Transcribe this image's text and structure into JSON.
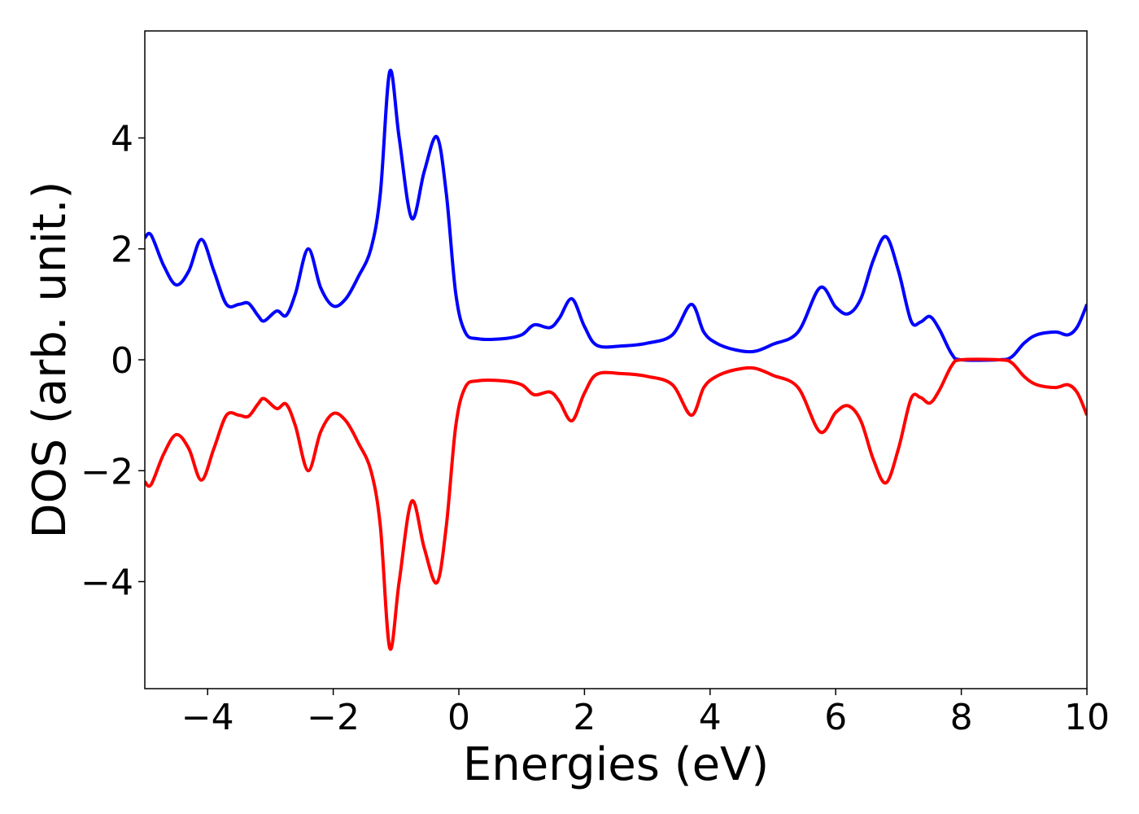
{
  "chart_data": {
    "type": "line",
    "xlabel": "Energies (eV)",
    "ylabel": "DOS (arb. unit.)",
    "x": [
      -5,
      -4.9,
      -4.7,
      -4.5,
      -4.3,
      -4.1,
      -3.9,
      -3.7,
      -3.5,
      -3.35,
      -3.2,
      -3.1,
      -2.9,
      -2.75,
      -2.6,
      -2.4,
      -2.2,
      -2.0,
      -1.8,
      -1.6,
      -1.4,
      -1.25,
      -1.1,
      -0.95,
      -0.75,
      -0.55,
      -0.35,
      -0.2,
      -0.05,
      0.1,
      0.3,
      0.7,
      1.0,
      1.2,
      1.45,
      1.6,
      1.8,
      2.0,
      2.2,
      2.6,
      3.0,
      3.4,
      3.7,
      3.9,
      4.1,
      4.4,
      4.7,
      5.0,
      5.4,
      5.75,
      6.0,
      6.2,
      6.4,
      6.6,
      6.8,
      7.0,
      7.2,
      7.35,
      7.5,
      7.65,
      7.85,
      8.0,
      8.6,
      8.8,
      9.0,
      9.2,
      9.5,
      9.7,
      9.85,
      10
    ],
    "series": [
      {
        "color": "#0000ff",
        "values": [
          2.2,
          2.25,
          1.7,
          1.35,
          1.6,
          2.17,
          1.6,
          1.0,
          1.0,
          1.02,
          0.8,
          0.7,
          0.88,
          0.8,
          1.2,
          2.0,
          1.3,
          0.97,
          1.1,
          1.5,
          2.0,
          3.0,
          5.2,
          4.0,
          2.55,
          3.4,
          4.02,
          3.0,
          1.2,
          0.5,
          0.38,
          0.38,
          0.45,
          0.63,
          0.58,
          0.75,
          1.1,
          0.6,
          0.26,
          0.25,
          0.3,
          0.45,
          1.0,
          0.5,
          0.3,
          0.18,
          0.15,
          0.28,
          0.5,
          1.3,
          0.95,
          0.83,
          1.1,
          1.8,
          2.22,
          1.6,
          0.7,
          0.68,
          0.78,
          0.55,
          0.1,
          0.0,
          0.0,
          0.05,
          0.3,
          0.45,
          0.5,
          0.45,
          0.6,
          1.0
        ]
      },
      {
        "color": "#ff0000",
        "values": [
          -2.2,
          -2.25,
          -1.7,
          -1.35,
          -1.6,
          -2.17,
          -1.6,
          -1.0,
          -1.0,
          -1.02,
          -0.8,
          -0.7,
          -0.88,
          -0.8,
          -1.2,
          -2.0,
          -1.3,
          -0.97,
          -1.1,
          -1.5,
          -2.0,
          -3.0,
          -5.2,
          -4.0,
          -2.55,
          -3.4,
          -4.02,
          -3.0,
          -1.2,
          -0.5,
          -0.38,
          -0.38,
          -0.45,
          -0.63,
          -0.58,
          -0.75,
          -1.1,
          -0.6,
          -0.26,
          -0.25,
          -0.3,
          -0.45,
          -1.0,
          -0.5,
          -0.3,
          -0.18,
          -0.15,
          -0.28,
          -0.5,
          -1.3,
          -0.95,
          -0.83,
          -1.1,
          -1.8,
          -2.22,
          -1.6,
          -0.7,
          -0.68,
          -0.78,
          -0.55,
          -0.1,
          0.0,
          0.0,
          -0.05,
          -0.3,
          -0.45,
          -0.5,
          -0.45,
          -0.6,
          -1.0
        ]
      }
    ],
    "xlim": [
      -5,
      10
    ],
    "xticks": [
      {
        "value": -4,
        "label": "−4"
      },
      {
        "value": -2,
        "label": "−2"
      },
      0,
      2,
      4,
      6,
      8,
      10
    ],
    "ylim": [
      -5.93,
      5.93
    ],
    "yticks": [
      {
        "value": -4,
        "label": "−4"
      },
      {
        "value": -2,
        "label": "−2"
      },
      0,
      2,
      4
    ],
    "grid": false
  }
}
